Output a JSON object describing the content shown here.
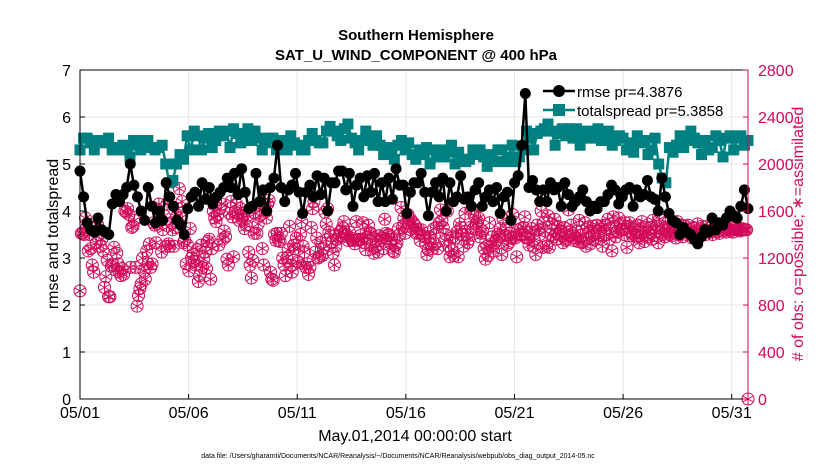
{
  "chart_data": {
    "type": "line",
    "title": "Southern Hemisphere",
    "subtitle": "SAT_U_WIND_COMPONENT @ 400 hPa",
    "xlabel": "May.01,2014 00:00:00 start",
    "ylabel": "rmse and totalspread",
    "ylabel_right": "# of obs: o=possible; ∗=assimilated",
    "footnote": "data file: /Users/gharamti/Documents/NCAR/Reanalysis/~/Documents/NCAR/Reanalysis/webpub/obs_diag_output_2014-05.nc",
    "x_start": 1,
    "x_end": 31.75,
    "x_ticks": [
      1,
      6,
      11,
      16,
      21,
      26,
      31
    ],
    "x_tick_labels": [
      "05/01",
      "05/06",
      "05/11",
      "05/16",
      "05/21",
      "05/26",
      "05/31"
    ],
    "ylim": [
      0,
      7
    ],
    "y_ticks": [
      0,
      1,
      2,
      3,
      4,
      5,
      6,
      7
    ],
    "ylim_right": [
      0,
      2800
    ],
    "y_ticks_right": [
      0,
      400,
      800,
      1200,
      1600,
      2000,
      2400,
      2800
    ],
    "grid": true,
    "legend_position": "top-right",
    "colors": {
      "rmse": "#000000",
      "spread": "#008080",
      "obs": "#d10a5a"
    },
    "series": [
      {
        "name": "rmse pr=4.3876",
        "values": [
          4.85,
          4.3,
          3.75,
          3.6,
          3.55,
          3.85,
          3.6,
          3.55,
          3.5,
          4.15,
          4.35,
          4.2,
          4.35,
          4.5,
          5.0,
          4.55,
          4.3,
          4.0,
          3.8,
          4.5,
          4.1,
          3.75,
          4.0,
          3.8,
          4.6,
          4.3,
          4.1,
          3.8,
          3.7,
          3.5,
          4.05,
          4.3,
          4.4,
          4.1,
          4.6,
          4.25,
          4.5,
          4.15,
          4.3,
          4.4,
          4.5,
          4.7,
          4.5,
          4.8,
          4.35,
          4.9,
          4.4,
          4.05,
          4.1,
          4.8,
          4.2,
          4.45,
          4.0,
          4.5,
          4.7,
          5.4,
          4.5,
          4.2,
          4.45,
          4.55,
          4.8,
          4.4,
          3.95,
          4.4,
          4.55,
          4.3,
          4.75,
          4.35,
          4.7,
          4.0,
          4.6,
          4.6,
          4.85,
          4.85,
          4.45,
          4.8,
          4.1,
          4.55,
          4.7,
          4.3,
          4.75,
          4.4,
          4.8,
          4.2,
          4.6,
          4.2,
          4.7,
          4.25,
          4.9,
          4.55,
          4.55,
          3.95,
          4.4,
          4.6,
          4.6,
          4.8,
          4.4,
          3.9,
          4.4,
          4.6,
          4.3,
          4.7,
          4.0,
          4.6,
          4.2,
          4.3,
          4.75,
          4.25,
          4.3,
          4.1,
          4.45,
          4.6,
          4.1,
          4.3,
          4.45,
          4.2,
          4.5,
          3.95,
          4.3,
          4.4,
          3.8,
          4.6,
          4.75,
          5.4,
          6.5,
          4.5,
          4.65,
          4.45,
          4.2,
          4.45,
          4.2,
          4.6,
          4.45,
          4.5,
          4.1,
          4.6,
          4.35,
          4.1,
          4.2,
          4.3,
          4.45,
          4.2,
          4.0,
          4.1,
          4.05,
          4.2,
          4.2,
          4.35,
          4.55,
          4.45,
          4.15,
          4.3,
          4.45,
          4.5,
          4.1,
          4.45,
          4.3,
          4.35,
          4.65,
          4.3,
          4.25,
          4.0,
          4.7,
          4.3,
          3.95,
          3.8,
          3.75,
          3.5,
          3.65,
          3.55,
          3.5,
          3.4,
          3.3,
          3.45,
          3.6,
          3.55,
          3.85,
          3.6,
          3.75,
          3.7,
          3.85,
          4.0,
          3.9,
          3.85,
          4.1,
          4.45,
          4.05
        ]
      },
      {
        "name": "totalspread pr=5.3858",
        "values": [
          5.3,
          5.55,
          5.55,
          5.45,
          5.3,
          5.5,
          5.5,
          5.45,
          5.55,
          5.3,
          5.35,
          5.3,
          5.4,
          5.3,
          5.15,
          5.5,
          5.4,
          5.3,
          5.5,
          5.5,
          5.35,
          5.3,
          5.35,
          5.4,
          5.0,
          4.6,
          4.65,
          5.0,
          5.2,
          5.1,
          5.6,
          5.3,
          5.7,
          5.6,
          5.3,
          5.55,
          5.65,
          5.35,
          5.5,
          5.7,
          5.6,
          5.7,
          5.35,
          5.75,
          5.65,
          5.45,
          5.65,
          5.75,
          5.5,
          5.7,
          5.55,
          5.3,
          5.45,
          5.55,
          5.55,
          5.3,
          5.35,
          5.5,
          5.3,
          5.6,
          5.45,
          5.4,
          5.3,
          5.3,
          5.5,
          5.65,
          5.5,
          5.45,
          5.45,
          5.7,
          5.8,
          5.7,
          5.6,
          5.5,
          5.75,
          5.85,
          5.55,
          5.45,
          5.3,
          5.5,
          5.7,
          5.5,
          5.4,
          5.6,
          5.4,
          5.2,
          5.35,
          5.25,
          5.1,
          5.4,
          5.5,
          5.3,
          5.45,
          5.2,
          5.1,
          5.3,
          5.2,
          5.35,
          5.0,
          5.3,
          5.15,
          5.3,
          5.15,
          5.25,
          5.4,
          5.0,
          5.25,
          5.1,
          5.05,
          5.1,
          5.3,
          5.2,
          5.3,
          5.15,
          4.95,
          5.2,
          5.05,
          5.3,
          5.3,
          5.05,
          5.15,
          5.4,
          5.05,
          5.15,
          5.3,
          5.7,
          5.55,
          5.3,
          5.65,
          5.7,
          5.75,
          5.85,
          5.7,
          5.4,
          5.65,
          5.75,
          5.6,
          5.75,
          5.55,
          5.75,
          5.4,
          5.6,
          5.7,
          5.55,
          5.65,
          5.75,
          5.5,
          5.6,
          5.7,
          5.4,
          5.5,
          5.6,
          5.55,
          5.3,
          5.45,
          5.25,
          5.6,
          5.45,
          5.5,
          5.2,
          5.3,
          5.55,
          5.0,
          4.7,
          4.6,
          5.35,
          5.25,
          5.4,
          5.6,
          5.35,
          5.5,
          5.7,
          5.55,
          5.45,
          5.2,
          5.5,
          5.3,
          5.35,
          5.6,
          5.5,
          5.15,
          5.55,
          5.6,
          5.3,
          5.55,
          5.6,
          5.4,
          5.5
        ]
      },
      {
        "name": "obs possible",
        "axis": "right",
        "values": [
          920,
          1410,
          1410,
          1400,
          1540,
          1460,
          1260,
          1400,
          1280,
          1140,
          1080,
          1460,
          1330,
          1480,
          1400,
          1300,
          1360,
          1260,
          950,
          1040,
          1180,
          870,
          870,
          1130,
          1140,
          1290,
          1100,
          1240,
          1150,
          1080,
          1050,
          1110,
          1060,
          1600,
          1590,
          1620,
          1570,
          1120,
          1460,
          1470,
          1520,
          1120,
          790,
          880,
          940,
          980,
          1200,
          1090,
          1020,
          1260,
          1150,
          1320,
          1120,
          1150,
          1500,
          1480,
          1330,
          1490,
          1660,
          1520,
          1250,
          1440,
          1560,
          1300,
          1660,
          1320,
          1300,
          1500,
          1440,
          1300,
          1460,
          1550,
          1620,
          1790,
          1540,
          1680,
          1330,
          1350,
          1150,
          1310,
          1090,
          1450,
          1200,
          1230,
          1170,
          1140,
          1270,
          1000,
          1050,
          1310,
          1120,
          1190,
          1250,
          1110,
          1340,
          1360,
          1020,
          1280,
          1600,
          1540,
          1510,
          1560,
          1310,
          1620,
          1660,
          1360,
          1430,
          1380,
          1190,
          1140,
          1580,
          1680,
          1550,
          1210,
          1590,
          1660,
          1580,
          1520,
          1620,
          1530,
          1560,
          1450,
          1480,
          1560,
          1250,
          1140,
          1030,
          1180,
          1410,
          1580,
          1410,
          1490,
          1560,
          1610,
          1280,
          1140,
          1650,
          1540,
          1660,
          1690,
          1080,
          1020,
          1010,
          1400,
          1350,
          1410,
          1350,
          1340,
          1410,
          1200,
          1140,
          1050,
          1200,
          1270,
          1470,
          1140,
          1080,
          1310,
          1280,
          1370,
          1170,
          1160,
          1400,
          1510,
          1300,
          1250,
          1120,
          1150,
          1060,
          1120,
          1460,
          1620,
          1680,
          1250,
          1370,
          1200,
          1210,
          1330,
          1220,
          1280,
          1590,
          1490,
          1620,
          1420,
          1390,
          1330,
          1240,
          1140,
          1300,
          1360,
          1380,
          1420,
          1430,
          1460,
          1510,
          1390,
          1400,
          1350,
          1420,
          1370,
          1350,
          1350,
          1320,
          1510,
          1360,
          1350,
          1390,
          1360,
          1500,
          1330,
          1270,
          1380,
          1480,
          1410,
          1410,
          1310,
          1240,
          1290,
          1360,
          1250,
          1390,
          1350,
          1370,
          1280,
          1530,
          1410,
          1390,
          1400,
          1330,
          1360,
          1260,
          1250,
          1310,
          1330,
          1450,
          1400,
          1630,
          1460,
          1540,
          1410,
          1500,
          1570,
          1520,
          1530,
          1460,
          1500,
          1480,
          1410,
          1420,
          1440,
          1350,
          1440,
          1390,
          1380,
          1320,
          1230,
          1270,
          1380,
          1370,
          1280,
          1450,
          1320,
          1460,
          1280,
          1500,
          1610,
          1520,
          1460,
          1350,
          1400,
          1600,
          1300,
          1210,
          1270,
          1380,
          1220,
          1370,
          1420,
          1210,
          1490,
          1460,
          1400,
          1300,
          1580,
          1400,
          1330,
          1360,
          1460,
          1620,
          1450,
          1560,
          1490,
          1510,
          1540,
          1380,
          1410,
          1430,
          1280,
          1190,
          1300,
          1220,
          1500,
          1300,
          1380,
          1260,
          1330,
          1350,
          1400,
          1380,
          1450,
          1230,
          1530,
          1390,
          1450,
          1310,
          1330,
          1410,
          1370,
          1570,
          1380,
          1370,
          1210,
          1440,
          1400,
          1450,
          1400,
          1460,
          1550,
          1370,
          1370,
          1310,
          1420,
          1450,
          1300,
          1350,
          1230,
          1480,
          1440,
          1400,
          1600,
          1290,
          1500,
          1430,
          1300,
          1560,
          1290,
          1400,
          1490,
          1380,
          1530,
          1360,
          1470,
          1400,
          1430,
          1420,
          1330,
          1460,
          1350,
          1360,
          1610,
          1390,
          1480,
          1410,
          1350,
          1370,
          1430,
          1340,
          1520,
          1390,
          1330,
          1340,
          1500,
          1300,
          1460,
          1420,
          1320,
          1390,
          1470,
          1400,
          1360,
          1480,
          1360,
          1430,
          1470,
          1300,
          1410,
          1480,
          1400,
          1530,
          1360,
          1450,
          1260,
          1550,
          1470,
          1380,
          1420,
          1540,
          1490,
          1440,
          1440,
          1400,
          1500,
          1290,
          1470,
          1500,
          1420,
          1390,
          1400,
          1460,
          1380,
          1480,
          1330,
          1390,
          1510,
          1420,
          1340,
          1460,
          1380,
          1420,
          1460,
          1360,
          1520,
          1390,
          1420,
          1470,
          1330,
          1530,
          1420,
          1400,
          1450,
          1380,
          1430,
          1500,
          1400,
          1470,
          1390,
          1420,
          1460,
          1370,
          1510,
          1400,
          1440,
          1480,
          1380,
          1430,
          1470,
          1400,
          1480,
          1410,
          1440,
          1370,
          1460,
          1420,
          1430,
          1490,
          1380,
          1450,
          1470,
          1410,
          1440,
          1400,
          1470,
          1430,
          1420,
          1460,
          1400,
          1450,
          1440,
          1420,
          1470,
          1410,
          1450,
          1430,
          1440,
          1460,
          1420,
          1450,
          1440,
          1430,
          1460,
          1420,
          1450,
          1440,
          1440,
          1450,
          1430,
          1440,
          1450,
          1440,
          1440,
          1440,
          0
        ]
      }
    ]
  }
}
